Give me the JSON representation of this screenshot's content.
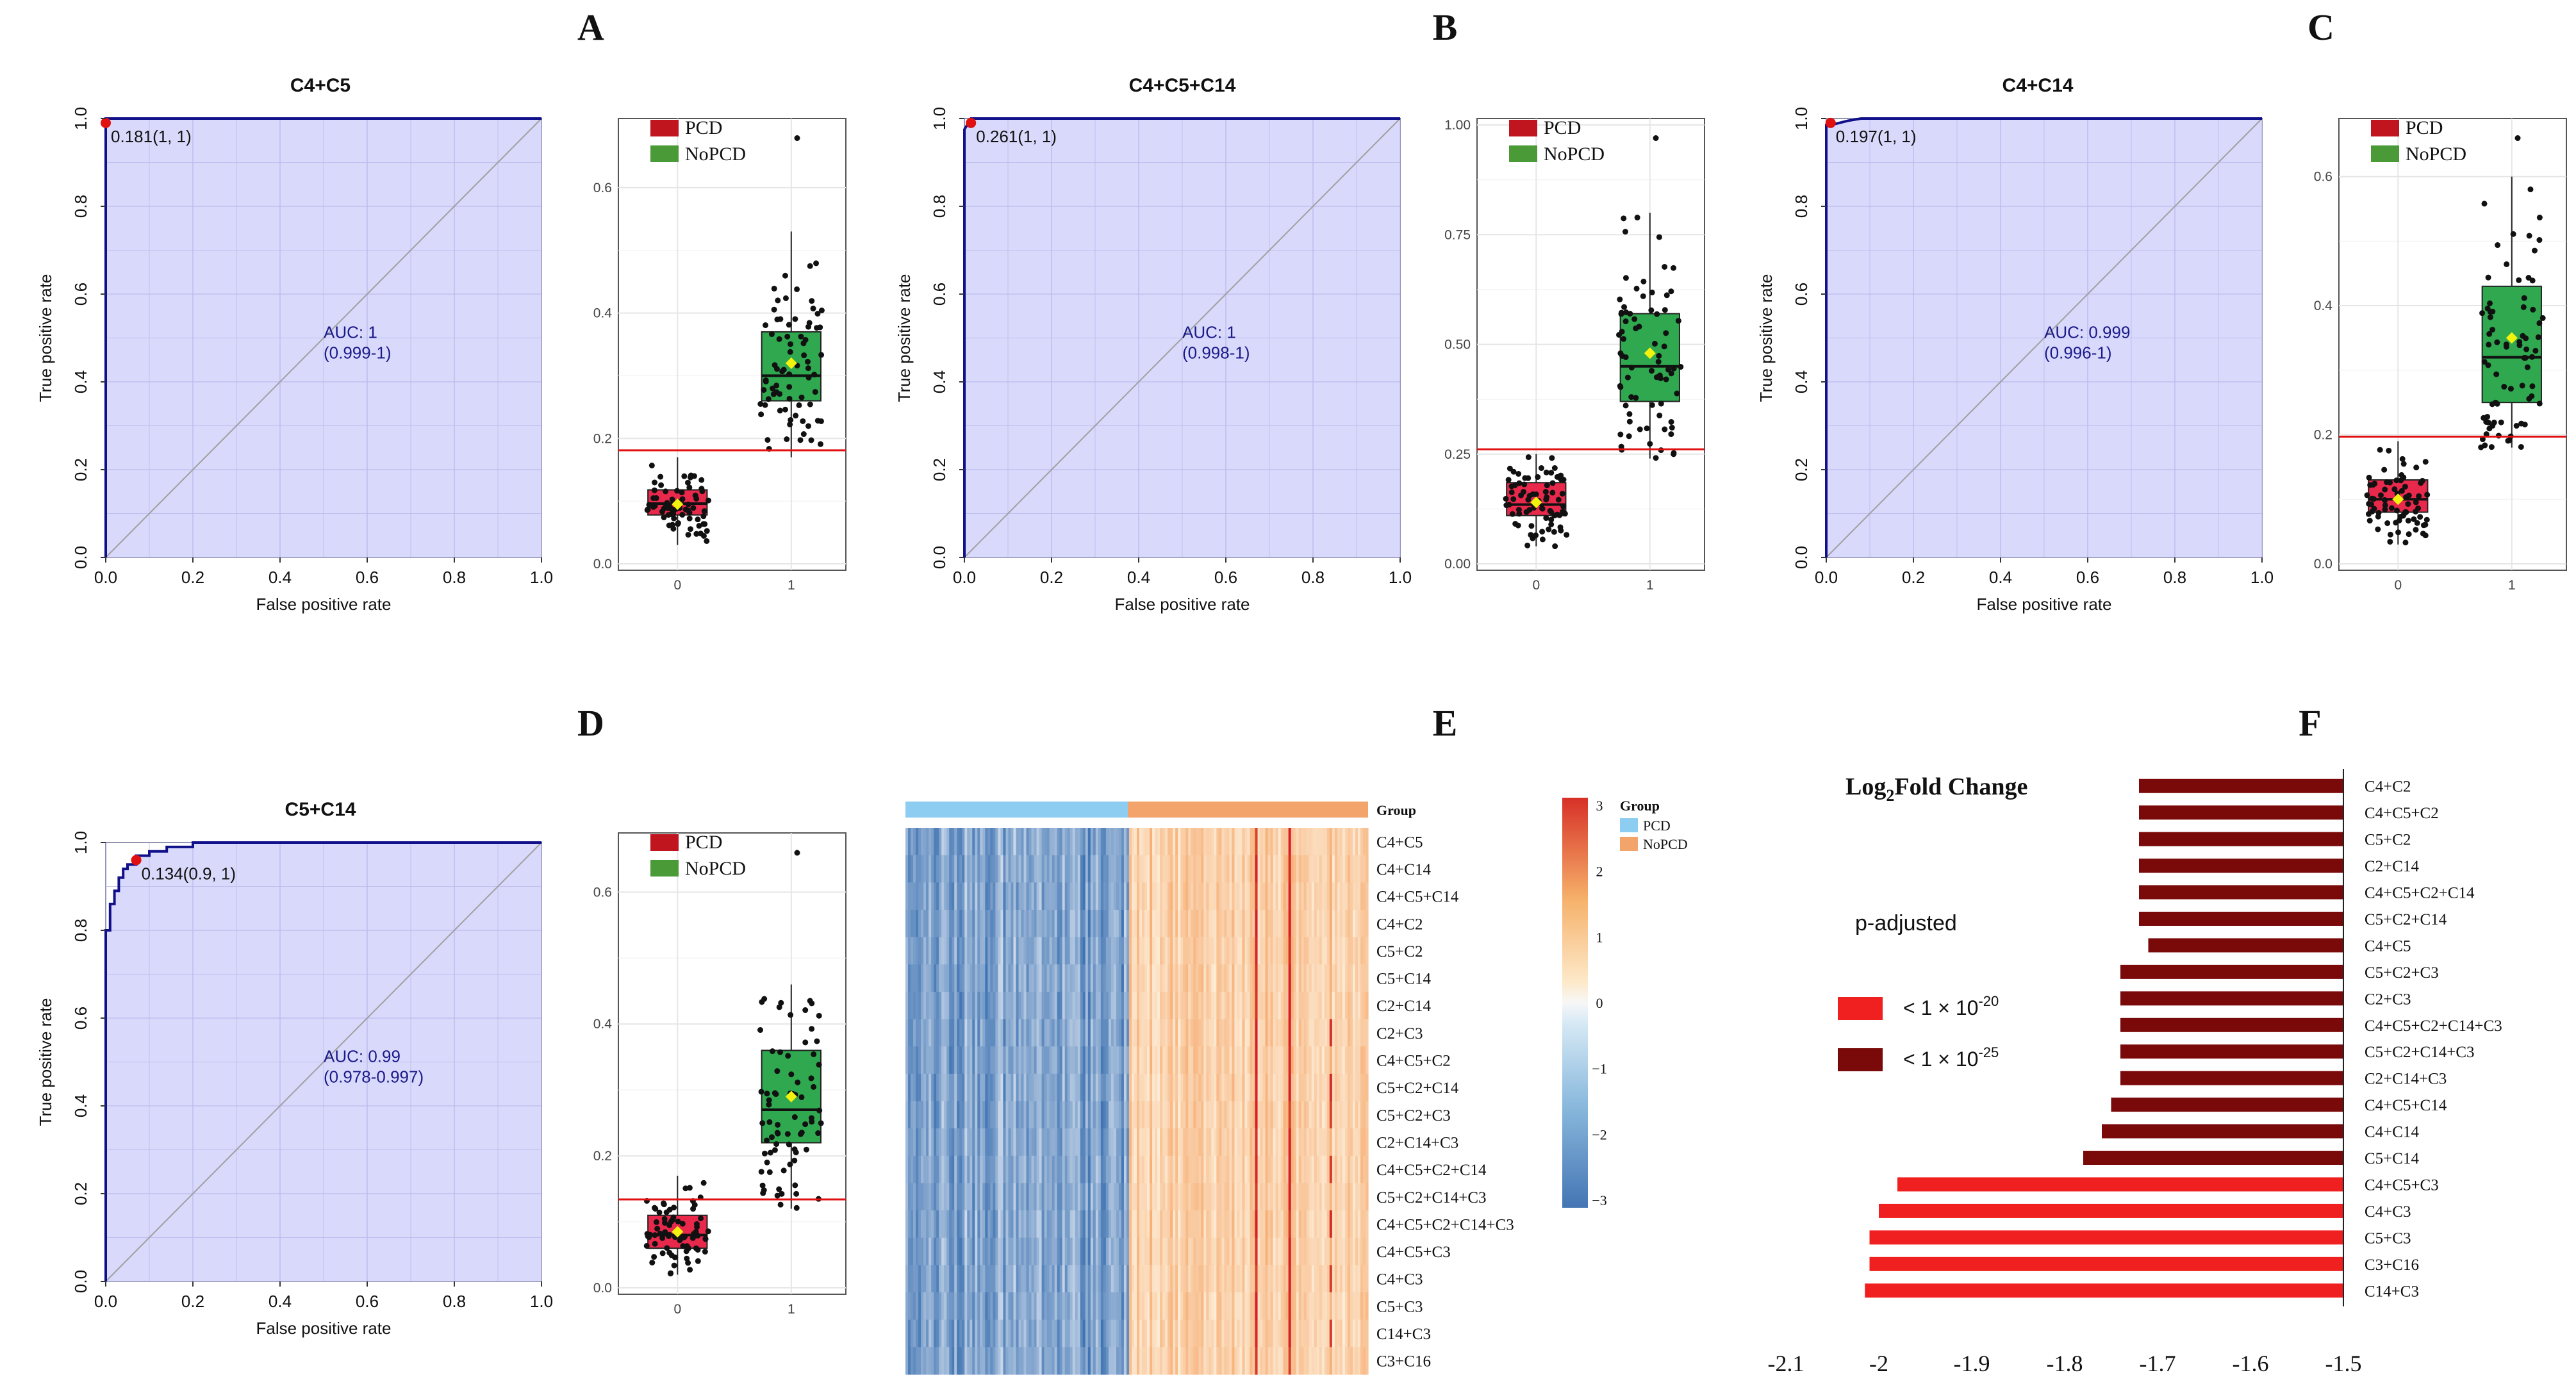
{
  "panels": [
    {
      "letter": "A",
      "title": "C4+C5",
      "cutoff_label": "0.181(1, 1)",
      "auc_label": "AUC: 1",
      "auc_ci": "(0.999-1)",
      "cut_fpr": 0.0,
      "cut_tpr": 0.99,
      "roc_x": [
        0,
        0,
        1
      ],
      "roc_y": [
        0,
        1,
        1
      ],
      "box": {
        "yticks": [
          "0.0",
          "0.2",
          "0.4",
          "0.6"
        ],
        "ymin": 0.0,
        "ymax": 0.7,
        "ytick_vals": [
          0.0,
          0.2,
          0.4,
          0.6
        ],
        "cutoff": 0.181,
        "groups": [
          {
            "q1": 0.078,
            "median": 0.096,
            "q3": 0.118,
            "wlo": 0.03,
            "whi": 0.17,
            "mean": 0.095
          },
          {
            "q1": 0.26,
            "median": 0.3,
            "q3": 0.37,
            "wlo": 0.17,
            "whi": 0.53,
            "mean": 0.32
          }
        ],
        "xticks": [
          "0",
          "1"
        ]
      }
    },
    {
      "letter": "B",
      "title": "C4+C5+C14",
      "cutoff_label": "0.261(1, 1)",
      "auc_label": "AUC: 1",
      "auc_ci": "(0.998-1)",
      "cut_fpr": 0.015,
      "cut_tpr": 0.99,
      "roc_x": [
        0,
        0,
        0.015,
        1
      ],
      "roc_y": [
        0,
        0.975,
        1,
        1
      ],
      "box": {
        "yticks": [
          "0.00",
          "0.25",
          "0.50",
          "0.75",
          "1.00"
        ],
        "ymin": 0.0,
        "ymax": 1.0,
        "ytick_vals": [
          0,
          0.25,
          0.5,
          0.75,
          1.0
        ],
        "cutoff": 0.261,
        "groups": [
          {
            "q1": 0.11,
            "median": 0.135,
            "q3": 0.185,
            "wlo": 0.04,
            "whi": 0.25,
            "mean": 0.14
          },
          {
            "q1": 0.37,
            "median": 0.45,
            "q3": 0.57,
            "wlo": 0.24,
            "whi": 0.8,
            "mean": 0.48
          }
        ],
        "xticks": [
          "0",
          "1"
        ]
      }
    },
    {
      "letter": "C",
      "title": "C4+C14",
      "cutoff_label": "0.197(1, 1)",
      "auc_label": "AUC: 0.999",
      "auc_ci": "(0.996-1)",
      "cut_fpr": 0.01,
      "cut_tpr": 0.99,
      "roc_x": [
        0,
        0,
        0.01,
        0.03,
        0.05,
        0.08,
        1
      ],
      "roc_y": [
        0,
        0.985,
        0.985,
        0.99,
        0.995,
        1,
        1
      ],
      "box": {
        "yticks": [
          "0.0",
          "0.2",
          "0.4",
          "0.6"
        ],
        "ymin": 0.0,
        "ymax": 0.68,
        "ytick_vals": [
          0.0,
          0.2,
          0.4,
          0.6
        ],
        "cutoff": 0.197,
        "groups": [
          {
            "q1": 0.08,
            "median": 0.1,
            "q3": 0.13,
            "wlo": 0.03,
            "whi": 0.19,
            "mean": 0.1
          },
          {
            "q1": 0.25,
            "median": 0.32,
            "q3": 0.43,
            "wlo": 0.18,
            "whi": 0.6,
            "mean": 0.35
          }
        ],
        "xticks": [
          "0",
          "1"
        ]
      }
    },
    {
      "letter": "D",
      "title": "C5+C14",
      "cutoff_label": "0.134(0.9, 1)",
      "auc_label": "AUC: 0.99",
      "auc_ci": "(0.978-0.997)",
      "cut_fpr": 0.07,
      "cut_tpr": 0.96,
      "roc_x": [
        0,
        0,
        0.01,
        0.01,
        0.02,
        0.02,
        0.03,
        0.03,
        0.04,
        0.04,
        0.05,
        0.05,
        0.07,
        0.07,
        0.1,
        0.1,
        0.14,
        0.14,
        0.2,
        0.2,
        1
      ],
      "roc_y": [
        0,
        0.8,
        0.8,
        0.86,
        0.86,
        0.89,
        0.89,
        0.92,
        0.92,
        0.94,
        0.94,
        0.95,
        0.95,
        0.97,
        0.97,
        0.98,
        0.98,
        0.99,
        0.99,
        1,
        1
      ],
      "box": {
        "yticks": [
          "0.0",
          "0.2",
          "0.4",
          "0.6"
        ],
        "ymin": 0.0,
        "ymax": 0.68,
        "ytick_vals": [
          0.0,
          0.2,
          0.4,
          0.6
        ],
        "cutoff": 0.134,
        "groups": [
          {
            "q1": 0.06,
            "median": 0.08,
            "q3": 0.11,
            "wlo": 0.02,
            "whi": 0.17,
            "mean": 0.085
          },
          {
            "q1": 0.22,
            "median": 0.27,
            "q3": 0.36,
            "wlo": 0.12,
            "whi": 0.46,
            "mean": 0.29
          }
        ],
        "xticks": [
          "0",
          "1"
        ]
      }
    }
  ],
  "roc_axis": {
    "xlabel": "False positive rate",
    "ylabel": "True positive rate",
    "ticks": [
      "0.0",
      "0.2",
      "0.4",
      "0.6",
      "0.8",
      "1.0"
    ]
  },
  "legend": {
    "pcd": "PCD",
    "nopcd": "NoPCD"
  },
  "colors": {
    "pcd_box": "#e8294c",
    "nopcd_box": "#2fa84f",
    "legend_pcd": "#c0141e",
    "legend_nopcd": "#4a9a38",
    "roc_line": "#10108a",
    "roc_fill": "#d9d9fb",
    "cut_point": "#e01010",
    "cut_line": "#e01010",
    "mean": "#f2f20f",
    "hm_pcd": "#8ecdf2",
    "hm_nopcd": "#f2a46b",
    "bar_strong": "#7a0a0a",
    "bar_weak": "#f02020"
  },
  "heatmap": {
    "letter": "E",
    "group_label": "Group",
    "rows": [
      "C4+C5",
      "C4+C14",
      "C4+C5+C14",
      "C4+C2",
      "C5+C2",
      "C5+C14",
      "C2+C14",
      "C2+C3",
      "C4+C5+C2",
      "C5+C2+C14",
      "C5+C2+C3",
      "C2+C14+C3",
      "C4+C5+C2+C14",
      "C5+C2+C14+C3",
      "C4+C5+C2+C14+C3",
      "C4+C5+C3",
      "C4+C3",
      "C5+C3",
      "C14+C3",
      "C3+C16"
    ],
    "scale_ticks": [
      "3",
      "2",
      "1",
      "0",
      "−1",
      "−2",
      "−3"
    ],
    "legend_title": "Group",
    "legend_pcd": "PCD",
    "legend_nopcd": "NoPCD"
  },
  "bar_chart": {
    "letter": "F",
    "title_prefix": "Log",
    "title_sub": "2",
    "title_suffix": "Fold Change",
    "padj_label": "p-adjusted",
    "legend_1": "< 1 × 10",
    "legend_1_exp": "-20",
    "legend_2": "< 1 × 10",
    "legend_2_exp": "-25",
    "xticks": [
      "-2.1",
      "-2",
      "-1.9",
      "-1.8",
      "-1.7",
      "-1.6",
      "-1.5"
    ]
  },
  "chart_data": [
    {
      "type": "line",
      "title": "C4+C5",
      "xlabel": "False positive rate",
      "ylabel": "True positive rate",
      "x": [
        0,
        0,
        1
      ],
      "y": [
        0,
        1,
        1
      ],
      "xlim": [
        0,
        1
      ],
      "ylim": [
        0,
        1
      ],
      "annotations": [
        "0.181(1, 1)",
        "AUC: 1",
        "(0.999-1)"
      ]
    },
    {
      "type": "line",
      "title": "C4+C5+C14",
      "xlabel": "False positive rate",
      "ylabel": "True positive rate",
      "x": [
        0,
        0,
        0.015,
        1
      ],
      "y": [
        0,
        0.975,
        1,
        1
      ],
      "xlim": [
        0,
        1
      ],
      "ylim": [
        0,
        1
      ],
      "annotations": [
        "0.261(1, 1)",
        "AUC: 1",
        "(0.998-1)"
      ]
    },
    {
      "type": "line",
      "title": "C4+C14",
      "xlabel": "False positive rate",
      "ylabel": "True positive rate",
      "x": [
        0,
        0,
        0.01,
        0.03,
        0.05,
        0.08,
        1
      ],
      "y": [
        0,
        0.985,
        0.985,
        0.99,
        0.995,
        1,
        1
      ],
      "xlim": [
        0,
        1
      ],
      "ylim": [
        0,
        1
      ],
      "annotations": [
        "0.197(1, 1)",
        "AUC: 0.999",
        "(0.996-1)"
      ]
    },
    {
      "type": "line",
      "title": "C5+C14",
      "xlabel": "False positive rate",
      "ylabel": "True positive rate",
      "x": [
        0,
        0,
        0.02,
        0.05,
        0.07,
        0.1,
        0.2,
        1
      ],
      "y": [
        0,
        0.8,
        0.86,
        0.94,
        0.96,
        0.98,
        1,
        1
      ],
      "xlim": [
        0,
        1
      ],
      "ylim": [
        0,
        1
      ],
      "annotations": [
        "0.134(0.9, 1)",
        "AUC: 0.99",
        "(0.978-0.997)"
      ]
    },
    {
      "type": "heatmap",
      "title": "",
      "rows": [
        "C4+C5",
        "C4+C14",
        "C4+C5+C14",
        "C4+C2",
        "C5+C2",
        "C5+C14",
        "C2+C14",
        "C2+C3",
        "C4+C5+C2",
        "C5+C2+C14",
        "C5+C2+C3",
        "C2+C14+C3",
        "C4+C5+C2+C14",
        "C5+C2+C14+C3",
        "C4+C5+C2+C14+C3",
        "C4+C5+C3",
        "C4+C3",
        "C5+C3",
        "C14+C3",
        "C3+C16"
      ],
      "groups": [
        "PCD",
        "NoPCD"
      ],
      "scale": [
        -3,
        3
      ]
    },
    {
      "type": "bar",
      "orientation": "horizontal",
      "title": "Log2Fold Change",
      "xlim": [
        -2.1,
        -1.5
      ],
      "categories": [
        "C4+C2",
        "C4+C5+C2",
        "C5+C2",
        "C2+C14",
        "C4+C5+C2+C14",
        "C5+C2+C14",
        "C4+C5",
        "C5+C2+C3",
        "C2+C3",
        "C4+C5+C2+C14+C3",
        "C5+C2+C14+C3",
        "C2+C14+C3",
        "C4+C5+C14",
        "C4+C14",
        "C5+C14",
        "C4+C5+C3",
        "C4+C3",
        "C5+C3",
        "C3+C16",
        "C14+C3"
      ],
      "values": [
        -1.72,
        -1.72,
        -1.72,
        -1.72,
        -1.72,
        -1.72,
        -1.71,
        -1.74,
        -1.74,
        -1.74,
        -1.74,
        -1.74,
        -1.75,
        -1.76,
        -1.78,
        -1.98,
        -2.0,
        -2.01,
        -2.01,
        -2.015
      ],
      "padj_class": [
        "<1e-25",
        "<1e-25",
        "<1e-25",
        "<1e-25",
        "<1e-25",
        "<1e-25",
        "<1e-25",
        "<1e-25",
        "<1e-25",
        "<1e-25",
        "<1e-25",
        "<1e-25",
        "<1e-25",
        "<1e-25",
        "<1e-25",
        "<1e-20",
        "<1e-20",
        "<1e-20",
        "<1e-20",
        "<1e-20"
      ]
    }
  ]
}
